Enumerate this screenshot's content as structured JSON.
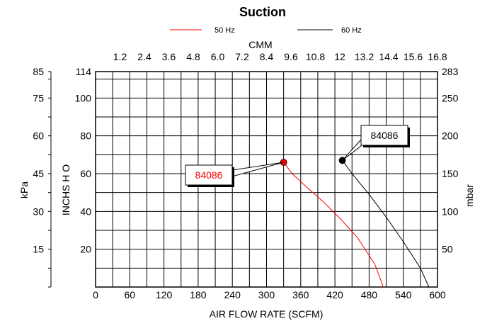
{
  "chart_data": {
    "type": "line",
    "title": "Suction",
    "xlabel": "AIR FLOW RATE (SCFM)",
    "x2label": "CMM",
    "ylabel_inner": "INCHS  H O",
    "ylabel_kpa": "kPa",
    "ylabel_mbar": "mbar",
    "xlim": [
      0,
      600
    ],
    "ylim": [
      0,
      114
    ],
    "grid": true,
    "legend_position": "top",
    "x_ticks": [
      "0",
      "60",
      "120",
      "180",
      "240",
      "300",
      "360",
      "420",
      "480",
      "540",
      "600"
    ],
    "x2_ticks": [
      "1.2",
      "2.4",
      "3.6",
      "4.8",
      "6.0",
      "7.2",
      "8.4",
      "9.6",
      "10.8",
      "12",
      "13.2",
      "14.4",
      "15.6",
      "16.8"
    ],
    "y_inner_ticks": [
      {
        "value": 20,
        "label": "20"
      },
      {
        "value": 40,
        "label": "40"
      },
      {
        "value": 60,
        "label": "60"
      },
      {
        "value": 80,
        "label": "80"
      },
      {
        "value": 100,
        "label": "100"
      },
      {
        "value": 114,
        "label": "114"
      }
    ],
    "y_kpa_ticks": [
      {
        "value": 20,
        "label": "15"
      },
      {
        "value": 40,
        "label": "30"
      },
      {
        "value": 60,
        "label": "45"
      },
      {
        "value": 80,
        "label": "60"
      },
      {
        "value": 100,
        "label": "75"
      },
      {
        "value": 114,
        "label": "85"
      }
    ],
    "y_mbar_ticks": [
      {
        "value": 20,
        "label": "50"
      },
      {
        "value": 40,
        "label": "100"
      },
      {
        "value": 60,
        "label": "150"
      },
      {
        "value": 80,
        "label": "200"
      },
      {
        "value": 100,
        "label": "250"
      },
      {
        "value": 114,
        "label": "283"
      }
    ],
    "series": [
      {
        "name": "50 Hz",
        "color": "#ff0000",
        "x": [
          330,
          345,
          370,
          400,
          430,
          460,
          490,
          505
        ],
        "y": [
          66,
          60,
          53,
          45,
          36,
          26,
          12,
          0
        ],
        "marker_label": "84086"
      },
      {
        "name": "60 Hz",
        "color": "#000000",
        "x": [
          433,
          450,
          480,
          510,
          540,
          570,
          585
        ],
        "y": [
          67,
          60,
          49,
          37,
          24,
          10,
          0
        ],
        "marker_label": "84086"
      }
    ]
  }
}
